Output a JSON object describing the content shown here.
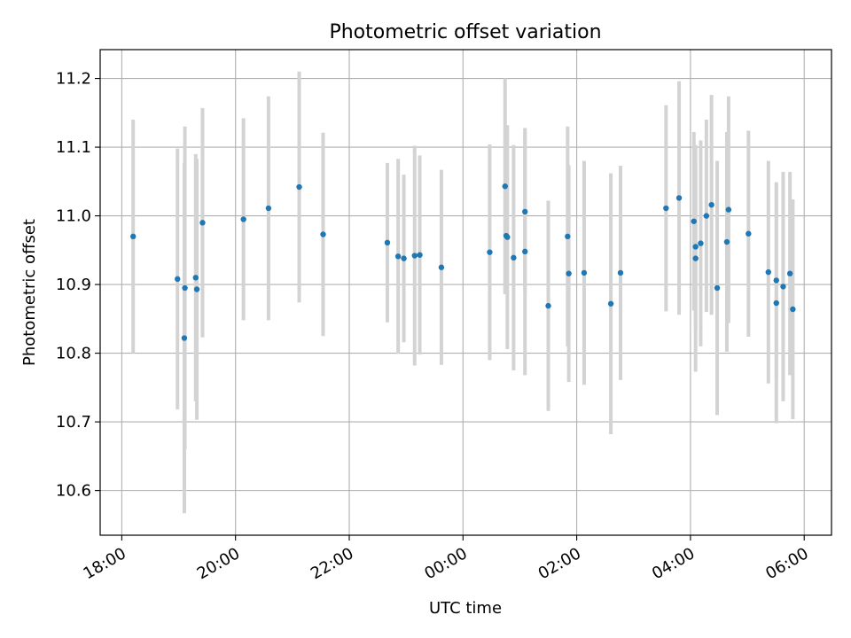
{
  "chart_data": {
    "type": "scatter",
    "title": "Photometric offset variation",
    "xlabel": "UTC time",
    "ylabel": "Photometric offset",
    "x_unit": "UTC hours (sequential, crossing midnight)",
    "xlim": [
      17.62,
      30.48
    ],
    "ylim": [
      10.535,
      11.242
    ],
    "grid": true,
    "x_ticks": [
      {
        "value": 18,
        "label": "18:00"
      },
      {
        "value": 20,
        "label": "20:00"
      },
      {
        "value": 22,
        "label": "22:00"
      },
      {
        "value": 24,
        "label": "00:00"
      },
      {
        "value": 26,
        "label": "02:00"
      },
      {
        "value": 28,
        "label": "04:00"
      },
      {
        "value": 30,
        "label": "06:00"
      }
    ],
    "y_ticks": [
      {
        "value": 10.6,
        "label": "10.6"
      },
      {
        "value": 10.7,
        "label": "10.7"
      },
      {
        "value": 10.8,
        "label": "10.8"
      },
      {
        "value": 10.9,
        "label": "10.9"
      },
      {
        "value": 11.0,
        "label": "11.0"
      },
      {
        "value": 11.1,
        "label": "11.1"
      },
      {
        "value": 11.2,
        "label": "11.2"
      }
    ],
    "colors": {
      "points": "#1f77b4",
      "errorbars": "#d3d3d3",
      "grid": "#b0b0b0",
      "axes": "#000000"
    },
    "points": [
      {
        "x": 18.2,
        "y": 10.97,
        "err": 0.17
      },
      {
        "x": 18.98,
        "y": 10.908,
        "err": 0.19
      },
      {
        "x": 19.1,
        "y": 10.822,
        "err": 0.255
      },
      {
        "x": 19.11,
        "y": 10.895,
        "err": 0.235
      },
      {
        "x": 19.3,
        "y": 10.91,
        "err": 0.18
      },
      {
        "x": 19.32,
        "y": 10.893,
        "err": 0.19
      },
      {
        "x": 19.42,
        "y": 10.99,
        "err": 0.167
      },
      {
        "x": 20.14,
        "y": 10.995,
        "err": 0.147
      },
      {
        "x": 20.58,
        "y": 11.011,
        "err": 0.163
      },
      {
        "x": 21.12,
        "y": 11.042,
        "err": 0.168
      },
      {
        "x": 21.54,
        "y": 10.973,
        "err": 0.148
      },
      {
        "x": 22.67,
        "y": 10.961,
        "err": 0.116
      },
      {
        "x": 22.86,
        "y": 10.941,
        "err": 0.142
      },
      {
        "x": 22.96,
        "y": 10.938,
        "err": 0.122
      },
      {
        "x": 23.15,
        "y": 10.942,
        "err": 0.16
      },
      {
        "x": 23.24,
        "y": 10.943,
        "err": 0.145
      },
      {
        "x": 23.62,
        "y": 10.925,
        "err": 0.142
      },
      {
        "x": 24.47,
        "y": 10.947,
        "err": 0.157
      },
      {
        "x": 24.74,
        "y": 11.043,
        "err": 0.157
      },
      {
        "x": 24.76,
        "y": 10.971,
        "err": 0.084
      },
      {
        "x": 24.78,
        "y": 10.969,
        "err": 0.163
      },
      {
        "x": 24.89,
        "y": 10.939,
        "err": 0.164
      },
      {
        "x": 25.09,
        "y": 11.006,
        "err": 0.12
      },
      {
        "x": 25.09,
        "y": 10.948,
        "err": 0.18
      },
      {
        "x": 25.5,
        "y": 10.869,
        "err": 0.153
      },
      {
        "x": 25.84,
        "y": 10.97,
        "err": 0.16
      },
      {
        "x": 25.86,
        "y": 10.916,
        "err": 0.158
      },
      {
        "x": 26.13,
        "y": 10.917,
        "err": 0.163
      },
      {
        "x": 26.6,
        "y": 10.872,
        "err": 0.19
      },
      {
        "x": 26.77,
        "y": 10.917,
        "err": 0.156
      },
      {
        "x": 27.57,
        "y": 11.011,
        "err": 0.15
      },
      {
        "x": 27.8,
        "y": 11.026,
        "err": 0.17
      },
      {
        "x": 28.06,
        "y": 10.992,
        "err": 0.13
      },
      {
        "x": 28.09,
        "y": 10.955,
        "err": 0.12
      },
      {
        "x": 28.09,
        "y": 10.938,
        "err": 0.165
      },
      {
        "x": 28.18,
        "y": 10.96,
        "err": 0.15
      },
      {
        "x": 28.28,
        "y": 11.0,
        "err": 0.14
      },
      {
        "x": 28.37,
        "y": 11.016,
        "err": 0.16
      },
      {
        "x": 28.47,
        "y": 10.895,
        "err": 0.185
      },
      {
        "x": 28.64,
        "y": 10.962,
        "err": 0.16
      },
      {
        "x": 28.67,
        "y": 11.009,
        "err": 0.165
      },
      {
        "x": 29.02,
        "y": 10.974,
        "err": 0.15
      },
      {
        "x": 29.37,
        "y": 10.918,
        "err": 0.162
      },
      {
        "x": 29.51,
        "y": 10.906,
        "err": 0.143
      },
      {
        "x": 29.51,
        "y": 10.873,
        "err": 0.175
      },
      {
        "x": 29.63,
        "y": 10.897,
        "err": 0.167
      },
      {
        "x": 29.75,
        "y": 10.916,
        "err": 0.148
      },
      {
        "x": 29.8,
        "y": 10.864,
        "err": 0.16
      }
    ]
  }
}
